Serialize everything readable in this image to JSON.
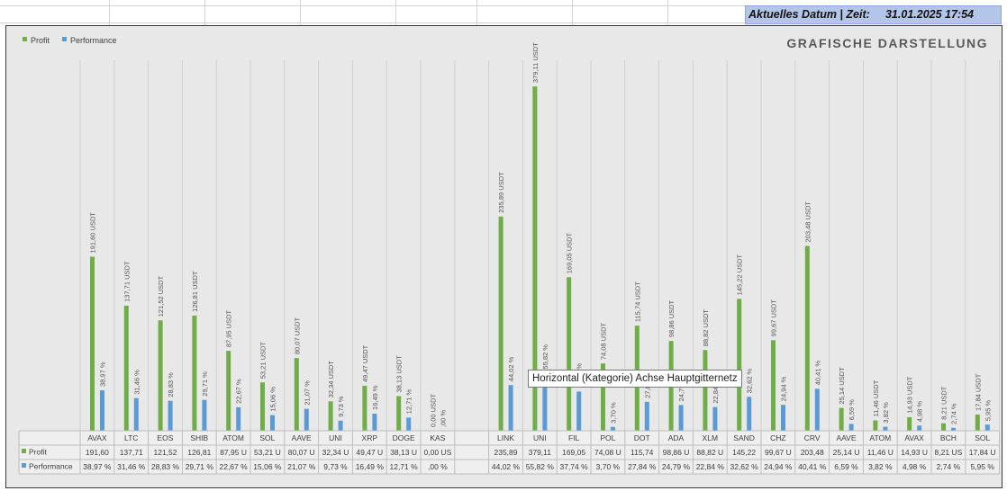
{
  "header": {
    "date_label": "Aktuelles Datum | Zeit:",
    "date_value": "31.01.2025 17:54"
  },
  "tooltip": {
    "text": "Horizontal (Kategorie) Achse Hauptgitternetz"
  },
  "colors": {
    "profit": "#70ad47",
    "performance": "#5b9bd5"
  },
  "chart_data": {
    "type": "bar",
    "title": "GRAFISCHE DARSTELLUNG",
    "legend_position": "top-left",
    "grid": "vertical category gridlines",
    "categories": [
      "AVAX",
      "LTC",
      "EOS",
      "SHIB",
      "ATOM",
      "SOL",
      "AAVE",
      "UNI",
      "XRP",
      "DOGE",
      "KAS",
      "",
      "LINK",
      "UNI",
      "FIL",
      "POL",
      "DOT",
      "ADA",
      "XLM",
      "SAND",
      "CHZ",
      "CRV",
      "AAVE",
      "ATOM",
      "AVAX",
      "BCH",
      "SOL"
    ],
    "ylim_profit": [
      0,
      400
    ],
    "ylim_performance": [
      0,
      350
    ],
    "series": [
      {
        "name": "Profit",
        "values": [
          191.6,
          137.71,
          121.52,
          126.81,
          87.95,
          53.21,
          80.07,
          32.34,
          49.47,
          38.13,
          0.0,
          null,
          235.89,
          379.11,
          169.05,
          74.08,
          115.74,
          98.86,
          88.82,
          145.22,
          99.67,
          203.48,
          25.14,
          11.46,
          14.93,
          8.21,
          17.84
        ],
        "bar_labels": [
          "191,60 USDT",
          "137,71 USDT",
          "121,52 USDT",
          "126,81 USDT",
          "87,95 USDT",
          "53,21 USDT",
          "80,07 USDT",
          "32,34 USDT",
          "49,47 USDT",
          "38,13 USDT",
          "0,00 USDT",
          "",
          "235,89 USDT",
          "379,11 USDT",
          "169,05 USDT",
          "74,08 USDT",
          "115,74 USDT",
          "98,86 USDT",
          "88,82 USDT",
          "145,22 USDT",
          "99,67 USDT",
          "203,48 USDT",
          "25,14 USDT",
          "11,46 USDT",
          "14,93 USDT",
          "8,21 USDT",
          "17,84 USDT"
        ],
        "table_values": [
          "191,60",
          "137,71",
          "121,52",
          "126,81",
          "87,95 U",
          "53,21 U",
          "80,07 U",
          "32,34 U",
          "49,47 U",
          "38,13 U",
          "0,00 US",
          "",
          "235,89",
          "379,11",
          "169,05",
          "74,08 U",
          "115,74",
          "98,86 U",
          "88,82 U",
          "145,22",
          "99,67 U",
          "203,48",
          "25,14 U",
          "11,46 U",
          "14,93 U",
          "8,21 US",
          "17,84 U"
        ]
      },
      {
        "name": "Performance",
        "values": [
          38.97,
          31.46,
          28.83,
          29.71,
          22.67,
          15.06,
          21.07,
          9.73,
          16.49,
          12.71,
          0.0,
          null,
          44.02,
          55.82,
          37.74,
          3.7,
          27.84,
          24.79,
          22.84,
          32.62,
          24.94,
          40.41,
          6.59,
          3.82,
          4.98,
          2.74,
          5.95
        ],
        "bar_labels": [
          "38,97 %",
          "31,46 %",
          "28,83 %",
          "29,71 %",
          "22,67 %",
          "15,06 %",
          "21,07 %",
          "9,73 %",
          "16,49 %",
          "12,71 %",
          ",00 %",
          "",
          "44,02 %",
          "55,82 %",
          "37,74 %",
          "3,70 %",
          "27,84 %",
          "24,79 %",
          "22,84 %",
          "32,62 %",
          "24,94 %",
          "40,41 %",
          "6,59 %",
          "3,82 %",
          "4,98 %",
          "2,74 %",
          "5,95 %"
        ],
        "table_values": [
          "38,97 %",
          "31,46 %",
          "28,83 %",
          "29,71 %",
          "22,67 %",
          "15,06 %",
          "21,07 %",
          "9,73 %",
          "16,49 %",
          "12,71 %",
          ",00 %",
          "",
          "44,02 %",
          "55,82 %",
          "37,74 %",
          "3,70 %",
          "27,84 %",
          "24,79 %",
          "22,84 %",
          "32,62 %",
          "24,94 %",
          "40,41 %",
          "6,59 %",
          "3,82 %",
          "4,98 %",
          "2,74 %",
          "5,95 %"
        ]
      }
    ]
  }
}
